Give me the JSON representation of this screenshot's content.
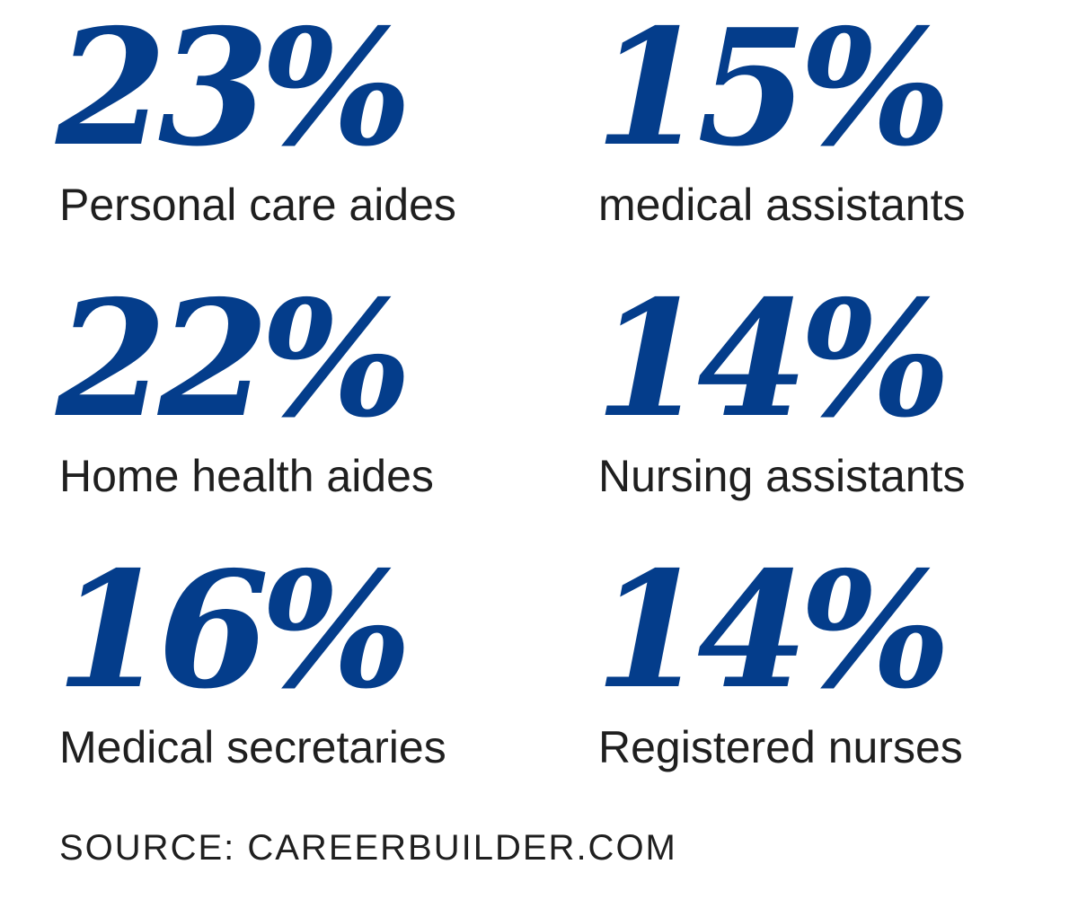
{
  "colors": {
    "accent": "#043d8b",
    "text": "#1f1f1f",
    "background": "#ffffff"
  },
  "stats": [
    {
      "value": "23%",
      "label": "Personal care aides"
    },
    {
      "value": "15%",
      "label": "medical assistants"
    },
    {
      "value": "22%",
      "label": "Home health aides"
    },
    {
      "value": "14%",
      "label": "Nursing assistants"
    },
    {
      "value": "16%",
      "label": "Medical secretaries"
    },
    {
      "value": "14%",
      "label": "Registered nurses"
    }
  ],
  "source": "SOURCE: CAREERBUILDER.COM"
}
